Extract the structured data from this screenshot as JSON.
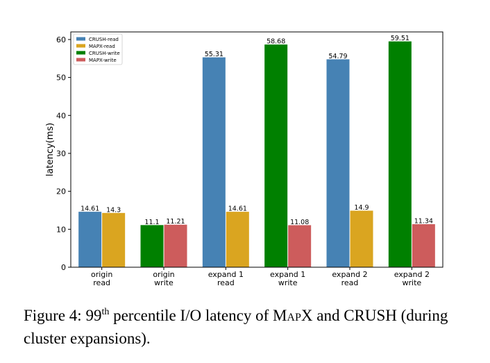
{
  "chart_data": {
    "type": "bar",
    "title": "",
    "xlabel": "",
    "ylabel": "latency(ms)",
    "ylim": [
      0,
      62
    ],
    "yticks": [
      0,
      10,
      20,
      30,
      40,
      50,
      60
    ],
    "grid": false,
    "legend_position": "top-left",
    "categories": [
      [
        "origin",
        "read"
      ],
      [
        "origin",
        "write"
      ],
      [
        "expand 1",
        "read"
      ],
      [
        "expand 1",
        "write"
      ],
      [
        "expand 2",
        "read"
      ],
      [
        "expand 2",
        "write"
      ]
    ],
    "series": [
      {
        "name": "CRUSH-read",
        "color": "#4682b4"
      },
      {
        "name": "MAPX-read",
        "color": "#daa520"
      },
      {
        "name": "CRUSH-write",
        "color": "#008000"
      },
      {
        "name": "MAPX-write",
        "color": "#cd5c5c"
      }
    ],
    "bars": [
      {
        "category": 0,
        "series": 0,
        "value": 14.61,
        "label": "14.61"
      },
      {
        "category": 0,
        "series": 1,
        "value": 14.3,
        "label": "14.3"
      },
      {
        "category": 1,
        "series": 2,
        "value": 11.1,
        "label": "11.1"
      },
      {
        "category": 1,
        "series": 3,
        "value": 11.21,
        "label": "11.21"
      },
      {
        "category": 2,
        "series": 0,
        "value": 55.31,
        "label": "55.31"
      },
      {
        "category": 2,
        "series": 1,
        "value": 14.61,
        "label": "14.61"
      },
      {
        "category": 3,
        "series": 2,
        "value": 58.68,
        "label": "58.68"
      },
      {
        "category": 3,
        "series": 3,
        "value": 11.08,
        "label": "11.08"
      },
      {
        "category": 4,
        "series": 0,
        "value": 54.79,
        "label": "54.79"
      },
      {
        "category": 4,
        "series": 1,
        "value": 14.9,
        "label": "14.9"
      },
      {
        "category": 5,
        "series": 2,
        "value": 59.51,
        "label": "59.51"
      },
      {
        "category": 5,
        "series": 3,
        "value": 11.34,
        "label": "11.34"
      }
    ]
  },
  "caption": {
    "prefix": "Figure 4: 99",
    "superscript": "th",
    "middle": " percentile I/O latency of ",
    "system_name": "MapX",
    "suffix": " and CRUSH (during cluster expansions)."
  }
}
